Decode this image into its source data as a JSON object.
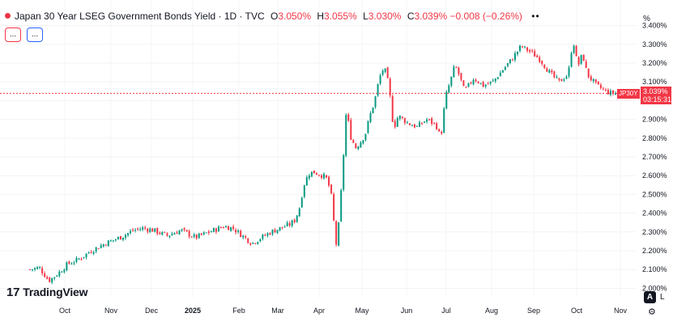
{
  "legend": {
    "title": "Japan 30 Year LSEG Government Bonds Yield · 1D · TVC",
    "open_key": "O",
    "open": "3.050%",
    "high_key": "H",
    "high": "3.055%",
    "low_key": "L",
    "low": "3.030%",
    "close_key": "C",
    "close": "3.039%",
    "change": "−0.008 (−0.26%)",
    "more": "••"
  },
  "indicators": {
    "button1": "...",
    "button2": "...",
    "color1": "#f23645",
    "color2": "#2962ff"
  },
  "price_tag": {
    "value": "3.039%",
    "countdown": "03:15:31",
    "symbol": "JP30Y"
  },
  "branding": {
    "logo_mark": "17",
    "logo_text": "TradingView"
  },
  "controls": {
    "auto_label": "A",
    "log_label": "L",
    "settings_icon": "gear-icon"
  },
  "colors": {
    "up": "#089981",
    "down": "#f23645",
    "line": "#f23645"
  },
  "chart_data": {
    "type": "candlestick",
    "unit": "%",
    "y_ticks": [
      "2.000%",
      "2.100%",
      "2.200%",
      "2.300%",
      "2.400%",
      "2.500%",
      "2.600%",
      "2.700%",
      "2.800%",
      "2.900%",
      "3.000%",
      "3.100%",
      "3.200%",
      "3.300%",
      "3.400%"
    ],
    "x_ticks": [
      "Oct",
      "Nov",
      "Dec",
      "2025",
      "Feb",
      "Mar",
      "Apr",
      "May",
      "Jun",
      "Jul",
      "Aug",
      "Sep",
      "Oct",
      "Nov"
    ],
    "ylim": [
      1.95,
      3.45
    ],
    "last_price": 3.039,
    "grid": true,
    "close_path": [
      [
        0,
        2.1
      ],
      [
        2,
        2.11
      ],
      [
        4,
        2.04
      ],
      [
        6,
        2.08
      ],
      [
        8,
        2.13
      ],
      [
        10,
        2.15
      ],
      [
        13,
        2.2
      ],
      [
        16,
        2.24
      ],
      [
        19,
        2.27
      ],
      [
        22,
        2.31
      ],
      [
        24,
        2.32
      ],
      [
        26,
        2.31
      ],
      [
        29,
        2.28
      ],
      [
        32,
        2.31
      ],
      [
        35,
        2.27
      ],
      [
        38,
        2.3
      ],
      [
        41,
        2.33
      ],
      [
        43,
        2.32
      ],
      [
        45,
        2.28
      ],
      [
        47,
        2.24
      ],
      [
        49,
        2.27
      ],
      [
        51,
        2.3
      ],
      [
        53,
        2.32
      ],
      [
        55,
        2.34
      ],
      [
        56,
        2.36
      ],
      [
        57,
        2.42
      ],
      [
        58,
        2.55
      ],
      [
        59,
        2.61
      ],
      [
        60,
        2.62
      ],
      [
        62,
        2.6
      ],
      [
        63,
        2.58
      ],
      [
        64,
        2.47
      ],
      [
        64.5,
        2.3
      ],
      [
        65,
        2.21
      ],
      [
        66,
        2.55
      ],
      [
        67,
        2.95
      ],
      [
        68,
        2.8
      ],
      [
        69,
        2.75
      ],
      [
        70,
        2.78
      ],
      [
        71,
        2.82
      ],
      [
        72,
        2.92
      ],
      [
        73,
        3.0
      ],
      [
        74,
        3.12
      ],
      [
        75,
        3.18
      ],
      [
        76,
        3.08
      ],
      [
        77,
        2.85
      ],
      [
        78,
        2.92
      ],
      [
        80,
        2.88
      ],
      [
        82,
        2.86
      ],
      [
        84,
        2.9
      ],
      [
        86,
        2.87
      ],
      [
        87,
        2.8
      ],
      [
        88,
        3.02
      ],
      [
        89,
        3.1
      ],
      [
        90,
        3.19
      ],
      [
        91,
        3.13
      ],
      [
        92,
        3.05
      ],
      [
        94,
        3.12
      ],
      [
        96,
        3.08
      ],
      [
        98,
        3.1
      ],
      [
        100,
        3.16
      ],
      [
        102,
        3.22
      ],
      [
        104,
        3.29
      ],
      [
        106,
        3.26
      ],
      [
        108,
        3.22
      ],
      [
        110,
        3.15
      ],
      [
        112,
        3.1
      ],
      [
        114,
        3.14
      ],
      [
        115,
        3.33
      ],
      [
        116,
        3.18
      ],
      [
        117,
        3.25
      ],
      [
        118,
        3.14
      ],
      [
        120,
        3.08
      ],
      [
        122,
        3.05
      ],
      [
        123,
        3.04
      ],
      [
        124,
        3.039
      ]
    ]
  }
}
